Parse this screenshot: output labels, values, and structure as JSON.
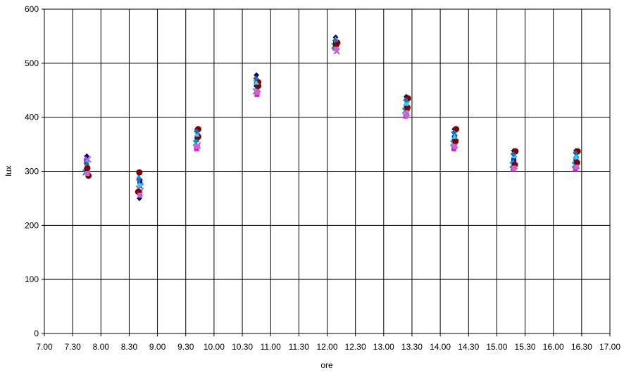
{
  "chart_data": {
    "type": "scatter",
    "title": "",
    "xlabel": "ore",
    "ylabel": "lux",
    "xlim": [
      7.0,
      17.0
    ],
    "ylim": [
      0,
      600
    ],
    "x_tick_labels": [
      "7.00",
      "7.30",
      "8.00",
      "8.30",
      "9.00",
      "9.30",
      "10.00",
      "10.30",
      "11.00",
      "11.30",
      "12.00",
      "12.30",
      "13.00",
      "13.30",
      "14.00",
      "14.30",
      "15.00",
      "15.30",
      "16.00",
      "16.30",
      "17.00"
    ],
    "y_ticks": [
      0,
      100,
      200,
      300,
      400,
      500,
      600
    ],
    "grid": true,
    "legend": "none",
    "note_x_units": "hours, tick labels as h.mm",
    "series": [
      {
        "color": "#000080",
        "marker": "diamond",
        "points": [
          [
            7.75,
            328
          ],
          [
            8.68,
            250
          ],
          [
            9.7,
            378
          ],
          [
            10.75,
            478
          ],
          [
            12.15,
            548
          ],
          [
            13.4,
            438
          ],
          [
            14.25,
            378
          ],
          [
            15.3,
            338
          ],
          [
            16.4,
            338
          ]
        ]
      },
      {
        "color": "#FF00FF",
        "marker": "square",
        "points": [
          [
            7.74,
            320
          ],
          [
            8.69,
            262
          ],
          [
            9.69,
            342
          ],
          [
            10.76,
            442
          ],
          [
            12.14,
            528
          ],
          [
            13.39,
            402
          ],
          [
            14.24,
            342
          ],
          [
            15.29,
            305
          ],
          [
            16.39,
            305
          ]
        ]
      },
      {
        "color": "#00B0F0",
        "marker": "triangle",
        "points": [
          [
            7.76,
            312
          ],
          [
            8.67,
            290
          ],
          [
            9.71,
            372
          ],
          [
            10.74,
            470
          ],
          [
            12.16,
            540
          ],
          [
            13.41,
            430
          ],
          [
            14.26,
            370
          ],
          [
            15.31,
            330
          ],
          [
            16.41,
            330
          ]
        ]
      },
      {
        "color": "#00A0A0",
        "marker": "x",
        "points": [
          [
            7.73,
            298
          ],
          [
            8.7,
            272
          ],
          [
            9.68,
            352
          ],
          [
            10.77,
            452
          ],
          [
            12.13,
            532
          ],
          [
            13.38,
            412
          ],
          [
            14.23,
            352
          ],
          [
            15.28,
            312
          ],
          [
            16.38,
            312
          ]
        ]
      },
      {
        "color": "#800000",
        "marker": "circle",
        "points": [
          [
            7.78,
            292
          ],
          [
            8.68,
            298
          ],
          [
            9.72,
            378
          ],
          [
            10.78,
            465
          ],
          [
            12.18,
            538
          ],
          [
            13.43,
            435
          ],
          [
            14.28,
            378
          ],
          [
            15.33,
            337
          ],
          [
            16.43,
            337
          ]
        ]
      },
      {
        "color": "#0000CD",
        "marker": "square",
        "points": [
          [
            7.75,
            302
          ],
          [
            8.69,
            282
          ],
          [
            9.7,
            362
          ],
          [
            10.75,
            460
          ],
          [
            12.15,
            538
          ],
          [
            13.4,
            420
          ],
          [
            14.25,
            362
          ],
          [
            15.3,
            322
          ],
          [
            16.4,
            322
          ]
        ]
      },
      {
        "color": "#9966CC",
        "marker": "x",
        "points": [
          [
            7.77,
            322
          ],
          [
            8.67,
            268
          ],
          [
            9.71,
            348
          ],
          [
            10.74,
            448
          ],
          [
            12.17,
            522
          ],
          [
            13.41,
            408
          ],
          [
            14.26,
            348
          ],
          [
            15.31,
            310
          ],
          [
            16.41,
            310
          ]
        ]
      },
      {
        "color": "#009999",
        "marker": "triangle",
        "points": [
          [
            7.74,
            308
          ],
          [
            8.7,
            258
          ],
          [
            9.69,
            358
          ],
          [
            10.76,
            456
          ],
          [
            12.14,
            530
          ],
          [
            13.39,
            418
          ],
          [
            14.24,
            358
          ],
          [
            15.29,
            318
          ],
          [
            16.39,
            318
          ]
        ]
      },
      {
        "color": "#800000",
        "marker": "circle",
        "points": [
          [
            7.76,
            306
          ],
          [
            8.66,
            262
          ],
          [
            9.72,
            364
          ],
          [
            10.78,
            458
          ],
          [
            12.16,
            534
          ],
          [
            13.42,
            418
          ],
          [
            14.27,
            356
          ],
          [
            15.32,
            312
          ],
          [
            16.42,
            316
          ]
        ]
      },
      {
        "color": "#33CCFF",
        "marker": "triangle",
        "points": [
          [
            7.75,
            318
          ],
          [
            8.68,
            276
          ],
          [
            9.7,
            368
          ],
          [
            10.75,
            464
          ],
          [
            12.15,
            544
          ],
          [
            13.4,
            425
          ],
          [
            14.25,
            364
          ],
          [
            15.3,
            328
          ],
          [
            16.4,
            326
          ]
        ]
      },
      {
        "color": "#CC66CC",
        "marker": "square",
        "points": [
          [
            7.76,
            296
          ],
          [
            8.69,
            256
          ],
          [
            9.71,
            346
          ],
          [
            10.77,
            446
          ],
          [
            12.16,
            526
          ],
          [
            13.41,
            404
          ],
          [
            14.26,
            346
          ],
          [
            15.31,
            306
          ],
          [
            16.41,
            308
          ]
        ]
      },
      {
        "color": "#336699",
        "marker": "diamond",
        "points": [
          [
            7.74,
            314
          ],
          [
            8.67,
            284
          ],
          [
            9.69,
            374
          ],
          [
            10.74,
            472
          ],
          [
            12.14,
            542
          ],
          [
            13.39,
            432
          ],
          [
            14.24,
            372
          ],
          [
            15.29,
            332
          ],
          [
            16.39,
            334
          ]
        ]
      }
    ]
  }
}
